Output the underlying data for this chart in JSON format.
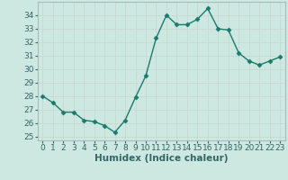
{
  "x": [
    0,
    1,
    2,
    3,
    4,
    5,
    6,
    7,
    8,
    9,
    10,
    11,
    12,
    13,
    14,
    15,
    16,
    17,
    18,
    19,
    20,
    21,
    22,
    23
  ],
  "y": [
    28,
    27.5,
    26.8,
    26.8,
    26.2,
    26.1,
    25.8,
    25.3,
    26.2,
    27.9,
    29.5,
    32.3,
    34.0,
    33.3,
    33.3,
    33.7,
    34.5,
    33.0,
    32.9,
    31.2,
    30.6,
    30.3,
    30.6,
    30.9
  ],
  "line_color": "#1a7a6e",
  "marker": "D",
  "marker_size": 2.5,
  "linewidth": 1.0,
  "xlabel": "Humidex (Indice chaleur)",
  "xlabel_fontsize": 7.5,
  "ylim": [
    24.7,
    35.0
  ],
  "xlim": [
    -0.5,
    23.5
  ],
  "yticks": [
    25,
    26,
    27,
    28,
    29,
    30,
    31,
    32,
    33,
    34
  ],
  "xticks": [
    0,
    1,
    2,
    3,
    4,
    5,
    6,
    7,
    8,
    9,
    10,
    11,
    12,
    13,
    14,
    15,
    16,
    17,
    18,
    19,
    20,
    21,
    22,
    23
  ],
  "grid_color": "#c8d8d0",
  "background_color": "#cce8e0",
  "tick_label_color": "#336666",
  "tick_fontsize": 6.5,
  "spine_color": "#aabbbb"
}
